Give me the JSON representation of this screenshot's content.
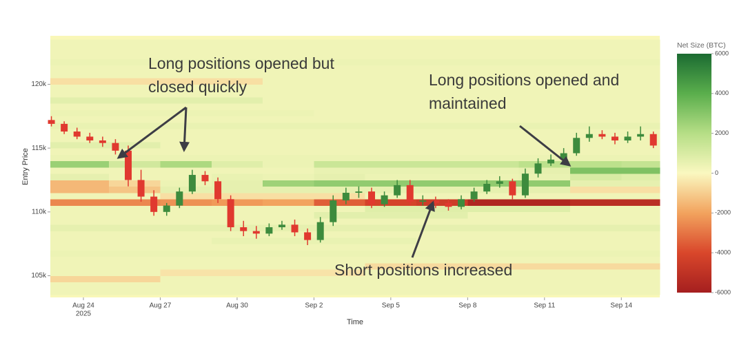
{
  "chart_data": [
    {
      "type": "heatmap",
      "xlabel": "Time",
      "ylabel": "Entry Price",
      "xlim": [
        "2025-08-22T17:00",
        "2025-09-15T12:00"
      ],
      "ylim": [
        103300,
        123800
      ],
      "xticks": [
        {
          "value": "2025-08-24T00:00",
          "label": "Aug 24"
        },
        {
          "value": "2025-08-27T00:00",
          "label": "Aug 27"
        },
        {
          "value": "2025-08-30T00:00",
          "label": "Aug 30"
        },
        {
          "value": "2025-09-02T00:00",
          "label": "Sep 2"
        },
        {
          "value": "2025-09-05T00:00",
          "label": "Sep 5"
        },
        {
          "value": "2025-09-08T00:00",
          "label": "Sep 8"
        },
        {
          "value": "2025-09-11T00:00",
          "label": "Sep 11"
        },
        {
          "value": "2025-09-14T00:00",
          "label": "Sep 14"
        }
      ],
      "x_year": "2025",
      "yticks": [
        {
          "value": 105000,
          "label": "105k"
        },
        {
          "value": 110000,
          "label": "110k"
        },
        {
          "value": 115000,
          "label": "115k"
        },
        {
          "value": 120000,
          "label": "120k"
        }
      ],
      "x_edges": [
        "2025-08-22T17:00",
        "2025-08-25T00:00",
        "2025-08-27T00:00",
        "2025-08-29T00:00",
        "2025-08-31T00:00",
        "2025-09-02T00:00",
        "2025-09-04T00:00",
        "2025-09-06T00:00",
        "2025-09-08T00:00",
        "2025-09-10T00:00",
        "2025-09-12T00:00",
        "2025-09-14T00:00",
        "2025-09-15T12:00"
      ],
      "y_edges": [
        103500,
        104000,
        104500,
        105000,
        105500,
        106000,
        106500,
        107000,
        107500,
        108000,
        108500,
        109000,
        109500,
        110000,
        110500,
        111000,
        111500,
        112000,
        112500,
        113000,
        113500,
        114000,
        114500,
        115000,
        115500,
        116000,
        116500,
        117000,
        117500,
        118000,
        118500,
        119000,
        119500,
        120000,
        120500,
        121000,
        121500,
        122000,
        122500,
        123000,
        123500
      ],
      "z": [
        [
          300,
          300,
          300,
          300,
          300,
          300,
          300,
          300,
          300,
          300,
          300,
          300
        ],
        [
          300,
          300,
          300,
          300,
          300,
          300,
          300,
          300,
          300,
          300,
          300,
          300
        ],
        [
          -800,
          -800,
          300,
          300,
          300,
          300,
          300,
          300,
          300,
          300,
          300,
          300
        ],
        [
          300,
          300,
          -500,
          -500,
          -500,
          -500,
          300,
          300,
          300,
          300,
          300,
          300
        ],
        [
          300,
          300,
          300,
          300,
          300,
          300,
          -700,
          -700,
          -700,
          -700,
          -700,
          -700
        ],
        [
          300,
          300,
          300,
          300,
          300,
          300,
          300,
          300,
          300,
          300,
          300,
          300
        ],
        [
          400,
          400,
          400,
          400,
          400,
          400,
          400,
          400,
          400,
          400,
          400,
          400
        ],
        [
          300,
          300,
          300,
          300,
          300,
          300,
          300,
          300,
          300,
          300,
          300,
          300
        ],
        [
          300,
          300,
          300,
          500,
          500,
          500,
          500,
          300,
          300,
          300,
          300,
          300
        ],
        [
          300,
          300,
          300,
          300,
          300,
          300,
          300,
          300,
          300,
          300,
          300,
          300
        ],
        [
          600,
          600,
          600,
          600,
          600,
          600,
          600,
          600,
          600,
          600,
          600,
          600
        ],
        [
          300,
          300,
          300,
          300,
          300,
          300,
          300,
          300,
          300,
          300,
          300,
          300
        ],
        [
          300,
          300,
          300,
          300,
          300,
          700,
          700,
          700,
          300,
          300,
          300,
          300
        ],
        [
          300,
          300,
          300,
          300,
          300,
          300,
          800,
          800,
          800,
          800,
          300,
          300
        ],
        [
          -2600,
          -2600,
          -2400,
          -2200,
          -2000,
          -3500,
          -4200,
          -4500,
          -5600,
          -5600,
          -5200,
          -5200
        ],
        [
          300,
          300,
          -600,
          -600,
          -600,
          -600,
          300,
          300,
          300,
          300,
          300,
          300
        ],
        [
          -1500,
          -1200,
          600,
          600,
          600,
          600,
          600,
          600,
          600,
          600,
          -600,
          -600
        ],
        [
          -1500,
          -800,
          400,
          600,
          2500,
          2800,
          2800,
          2800,
          2800,
          2800,
          600,
          600
        ],
        [
          600,
          300,
          300,
          500,
          400,
          600,
          400,
          400,
          400,
          500,
          1000,
          800
        ],
        [
          300,
          300,
          300,
          300,
          300,
          500,
          500,
          500,
          500,
          600,
          3200,
          3200
        ],
        [
          2600,
          1200,
          2200,
          800,
          400,
          1400,
          1400,
          1400,
          1400,
          1800,
          1800,
          1600
        ],
        [
          400,
          400,
          400,
          400,
          400,
          400,
          400,
          400,
          400,
          400,
          400,
          400
        ],
        [
          300,
          300,
          300,
          300,
          300,
          300,
          300,
          300,
          300,
          300,
          300,
          300
        ],
        [
          700,
          700,
          300,
          300,
          300,
          300,
          300,
          300,
          300,
          300,
          300,
          300
        ],
        [
          300,
          300,
          300,
          300,
          300,
          300,
          300,
          300,
          300,
          300,
          300,
          300
        ],
        [
          300,
          300,
          300,
          300,
          300,
          300,
          300,
          300,
          300,
          300,
          300,
          300
        ],
        [
          500,
          500,
          500,
          500,
          500,
          500,
          500,
          500,
          500,
          500,
          500,
          500
        ],
        [
          300,
          300,
          300,
          300,
          300,
          300,
          300,
          300,
          300,
          300,
          300,
          300
        ],
        [
          400,
          400,
          400,
          400,
          400,
          300,
          300,
          300,
          300,
          300,
          300,
          300
        ],
        [
          300,
          300,
          300,
          300,
          300,
          300,
          300,
          300,
          300,
          300,
          300,
          300
        ],
        [
          700,
          700,
          700,
          700,
          300,
          300,
          300,
          300,
          300,
          300,
          300,
          300
        ],
        [
          300,
          300,
          300,
          300,
          300,
          300,
          300,
          300,
          300,
          300,
          300,
          300
        ],
        [
          300,
          300,
          300,
          300,
          300,
          300,
          300,
          300,
          300,
          300,
          300,
          300
        ],
        [
          -600,
          -600,
          -600,
          -600,
          300,
          300,
          300,
          300,
          300,
          300,
          300,
          300
        ],
        [
          300,
          300,
          300,
          300,
          300,
          300,
          300,
          300,
          300,
          300,
          300,
          300
        ],
        [
          300,
          300,
          300,
          300,
          300,
          300,
          300,
          300,
          300,
          300,
          300,
          300
        ],
        [
          400,
          400,
          400,
          400,
          400,
          400,
          400,
          400,
          400,
          400,
          400,
          400
        ],
        [
          300,
          300,
          300,
          300,
          300,
          300,
          300,
          300,
          300,
          300,
          300,
          300
        ],
        [
          300,
          300,
          300,
          300,
          300,
          300,
          300,
          300,
          300,
          300,
          300,
          300
        ],
        [
          300,
          300,
          300,
          300,
          300,
          300,
          300,
          300,
          300,
          300,
          300,
          300
        ]
      ],
      "zlim": [
        -6000,
        6000
      ],
      "colorscale": [
        "#a51f1f",
        "#d9472b",
        "#f2a35e",
        "#faf8c0",
        "#b6de86",
        "#5aae4c",
        "#1b6b32"
      ],
      "colorbar_title": "Net Size (BTC)",
      "colorbar_ticks": [
        -6000,
        -4000,
        -2000,
        0,
        2000,
        4000,
        6000
      ]
    },
    {
      "type": "candlestick",
      "x": [
        "2025-08-22T18:00",
        "2025-08-23T06:00",
        "2025-08-23T18:00",
        "2025-08-24T06:00",
        "2025-08-24T18:00",
        "2025-08-25T06:00",
        "2025-08-25T18:00",
        "2025-08-26T06:00",
        "2025-08-26T18:00",
        "2025-08-27T06:00",
        "2025-08-27T18:00",
        "2025-08-28T06:00",
        "2025-08-28T18:00",
        "2025-08-29T06:00",
        "2025-08-29T18:00",
        "2025-08-30T06:00",
        "2025-08-30T18:00",
        "2025-08-31T06:00",
        "2025-08-31T18:00",
        "2025-09-01T06:00",
        "2025-09-01T18:00",
        "2025-09-02T06:00",
        "2025-09-02T18:00",
        "2025-09-03T06:00",
        "2025-09-03T18:00",
        "2025-09-04T06:00",
        "2025-09-04T18:00",
        "2025-09-05T06:00",
        "2025-09-05T18:00",
        "2025-09-06T06:00",
        "2025-09-06T18:00",
        "2025-09-07T06:00",
        "2025-09-07T18:00",
        "2025-09-08T06:00",
        "2025-09-08T18:00",
        "2025-09-09T06:00",
        "2025-09-09T18:00",
        "2025-09-10T06:00",
        "2025-09-10T18:00",
        "2025-09-11T06:00",
        "2025-09-11T18:00",
        "2025-09-12T06:00",
        "2025-09-12T18:00",
        "2025-09-13T06:00",
        "2025-09-13T18:00",
        "2025-09-14T06:00",
        "2025-09-14T18:00",
        "2025-09-15T06:00"
      ],
      "open": [
        117200,
        116900,
        116300,
        115900,
        115600,
        115400,
        114800,
        112500,
        111200,
        110000,
        110500,
        111600,
        112900,
        112400,
        111000,
        108800,
        108500,
        108300,
        108800,
        109000,
        108400,
        107800,
        109200,
        110900,
        111500,
        111600,
        110600,
        111300,
        112100,
        110800,
        110900,
        110700,
        110400,
        111000,
        111600,
        112200,
        112400,
        111300,
        113000,
        113800,
        114100,
        114600,
        115800,
        116100,
        115900,
        115600,
        115900,
        116100
      ],
      "high": [
        117500,
        117100,
        116600,
        116200,
        115900,
        115700,
        115200,
        113300,
        111700,
        110700,
        111900,
        113300,
        113200,
        112700,
        111300,
        109300,
        108900,
        109100,
        109300,
        109400,
        108700,
        109600,
        111300,
        111900,
        112000,
        111900,
        111600,
        112500,
        112500,
        111300,
        111200,
        111000,
        111300,
        111900,
        112500,
        112800,
        112600,
        113400,
        114200,
        114500,
        115000,
        116200,
        116700,
        116400,
        116200,
        116300,
        116700,
        116300
      ],
      "low": [
        116700,
        116100,
        115700,
        115400,
        115100,
        114500,
        112000,
        110800,
        109700,
        109700,
        110300,
        111400,
        112100,
        110700,
        108500,
        108100,
        107900,
        108100,
        108600,
        108100,
        107400,
        107600,
        108900,
        110600,
        111100,
        110300,
        110400,
        111100,
        110500,
        110500,
        110300,
        110100,
        110200,
        110800,
        111400,
        111900,
        111000,
        111100,
        112700,
        113600,
        113900,
        114400,
        115500,
        115700,
        115300,
        115400,
        115600,
        115000
      ],
      "close": [
        116900,
        116300,
        115900,
        115600,
        115400,
        114800,
        112500,
        111200,
        110000,
        110500,
        111600,
        112900,
        112400,
        111000,
        108800,
        108500,
        108300,
        108800,
        109000,
        108400,
        107800,
        109200,
        110900,
        111500,
        111600,
        110600,
        111300,
        112100,
        110800,
        110900,
        110700,
        110400,
        111000,
        111600,
        112200,
        112400,
        111300,
        113000,
        113800,
        114100,
        114600,
        115800,
        116100,
        115900,
        115600,
        115900,
        116100,
        115200
      ],
      "up_color": "#3d8b3d",
      "down_color": "#e0392f"
    }
  ],
  "annotations": [
    {
      "lines": [
        "Long positions opened but",
        "closed quickly"
      ]
    },
    {
      "lines": [
        "Long positions opened and",
        "maintained"
      ]
    },
    {
      "lines": [
        "Short positions increased"
      ]
    }
  ]
}
